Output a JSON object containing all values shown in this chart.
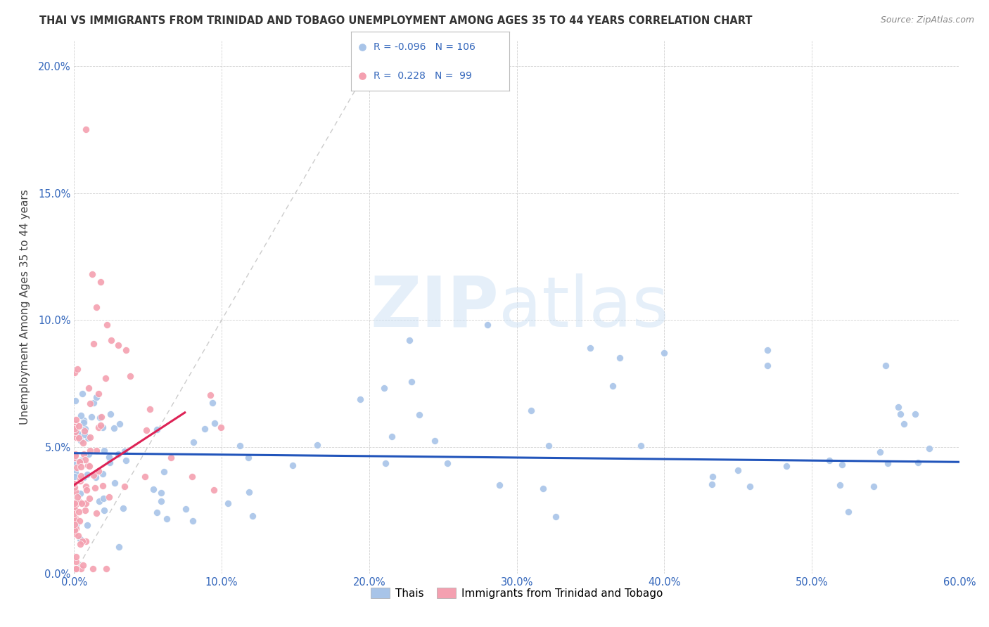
{
  "title": "THAI VS IMMIGRANTS FROM TRINIDAD AND TOBAGO UNEMPLOYMENT AMONG AGES 35 TO 44 YEARS CORRELATION CHART",
  "source": "Source: ZipAtlas.com",
  "ylabel": "Unemployment Among Ages 35 to 44 years",
  "xlim": [
    0.0,
    0.6
  ],
  "ylim": [
    0.0,
    0.21
  ],
  "x_ticks": [
    0.0,
    0.1,
    0.2,
    0.3,
    0.4,
    0.5,
    0.6
  ],
  "x_tick_labels": [
    "0.0%",
    "10.0%",
    "20.0%",
    "30.0%",
    "40.0%",
    "50.0%",
    "60.0%"
  ],
  "y_ticks": [
    0.0,
    0.05,
    0.1,
    0.15,
    0.2
  ],
  "y_tick_labels": [
    "0.0%",
    "5.0%",
    "10.0%",
    "15.0%",
    "20.0%"
  ],
  "blue_color": "#a8c4e8",
  "pink_color": "#f4a0b0",
  "blue_line_color": "#2255bb",
  "pink_line_color": "#dd2255",
  "diagonal_color": "#cccccc",
  "legend_blue_r": "-0.096",
  "legend_blue_n": "106",
  "legend_pink_r": "0.228",
  "legend_pink_n": "99",
  "background_color": "#ffffff",
  "blue_intercept": 0.0475,
  "blue_slope": -0.0058,
  "pink_intercept": 0.035,
  "pink_slope": 0.38,
  "pink_line_xmax": 0.075
}
